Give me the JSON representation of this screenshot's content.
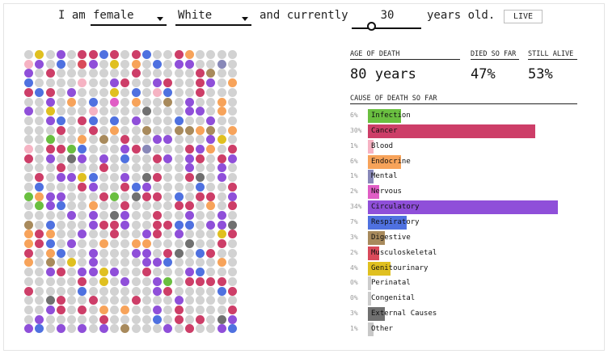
{
  "header": {
    "intro": "I am",
    "sex": {
      "value": "female"
    },
    "race": {
      "value": "White"
    },
    "middle": "and currently",
    "age": {
      "value": "30"
    },
    "outro": "years old.",
    "live_label": "LIVE"
  },
  "stats": {
    "age_of_death": {
      "label": "AGE OF DEATH",
      "value": "80 years"
    },
    "died_so_far": {
      "label": "DIED SO FAR",
      "value": "47%"
    },
    "still_alive": {
      "label": "STILL ALIVE",
      "value": "53%"
    }
  },
  "colors": {
    "alive": "#d2d2d2",
    "infection": "#6abf40",
    "cancer": "#cd3e68",
    "blood": "#f6b3c3",
    "endocrine": "#f7a35a",
    "mental": "#8888b8",
    "nervous": "#e05dc5",
    "circulatory": "#8f4fd9",
    "respiratory": "#4f71e0",
    "digestive": "#a88a5c",
    "musculoskeletal": "#d94a5a",
    "genitourinary": "#e0c020",
    "perinatal": "#cccccc",
    "congenital": "#cccccc",
    "external": "#707070",
    "other": "#c8c8c8"
  },
  "causes_title": "CAUSE OF DEATH SO FAR",
  "causes": [
    {
      "key": "infection",
      "pct": "6%",
      "value": 6,
      "name": "Infection"
    },
    {
      "key": "cancer",
      "pct": "30%",
      "value": 30,
      "name": "Cancer"
    },
    {
      "key": "blood",
      "pct": "1%",
      "value": 1,
      "name": "Blood"
    },
    {
      "key": "endocrine",
      "pct": "6%",
      "value": 6,
      "name": "Endocrine"
    },
    {
      "key": "mental",
      "pct": "1%",
      "value": 1,
      "name": "Mental"
    },
    {
      "key": "nervous",
      "pct": "2%",
      "value": 2,
      "name": "Nervous"
    },
    {
      "key": "circulatory",
      "pct": "34%",
      "value": 34,
      "name": "Circulatory"
    },
    {
      "key": "respiratory",
      "pct": "7%",
      "value": 7,
      "name": "Respiratory"
    },
    {
      "key": "digestive",
      "pct": "3%",
      "value": 3,
      "name": "Digestive"
    },
    {
      "key": "musculoskeletal",
      "pct": "2%",
      "value": 2,
      "name": "Musculoskeletal"
    },
    {
      "key": "genitourinary",
      "pct": "4%",
      "value": 4,
      "name": "Genitourinary"
    },
    {
      "key": "perinatal",
      "pct": "0%",
      "value": 0,
      "name": "Perinatal"
    },
    {
      "key": "congenital",
      "pct": "0%",
      "value": 0,
      "name": "Congenital"
    },
    {
      "key": "external",
      "pct": "3%",
      "value": 3,
      "name": "External Causes"
    },
    {
      "key": "other",
      "pct": "1%",
      "value": 1,
      "name": "Other"
    }
  ],
  "grid": {
    "rows": [
      ".a.n.ccbc.cb..cfr...",
      "hn.b.sn.a.f.b.nn..e.",
      "n.c.......c.....cd..",
      "b....h..nc..nc..cnrf",
      "cbc.n...a.b.hb..c...",
      "..n.f.b.m.f..d.n..f.",
      "n.a...h....k...nn.f.",
      "..nb.cb.b.n...b..n..",
      "...c..c.f..d..ddfd.f",
      "..i..f.d.c..nn...na.",
      "h.ccib...nce...cnf.c",
      "c.n.kn.n.b..cn.nc.cn",
      "...c...c.......n..n.",
      ".c.nnab..n.kc..ck.n.",
      ".b...cn..cbn....b..c",
      "ifnn...ci.kcc.b.cc.n",
      ".inb..f..c....cc.f.c",
      "....n.n.kn..c..n..n.",
      "d.b...nccn..ccbb.nnk",
      "fcf..n..c..nc.n...ac",
      "fcb.n..f..ff...k..c.",
      "c.fb..n...nn.ck.bc..",
      "f.d.a.n....nnb....f.",
      "..nc.nnan..c...nb...",
      ".....c.a.n..ni.cccc.",
      "c....b......nc....bc",
      "..kc..c...c...n.....",
      "..nc.c.f.f..n.c....c",
      ".n.....c....b.c.c.kn",
      "nb.n.n.n.d...n.c..nb"
    ]
  }
}
